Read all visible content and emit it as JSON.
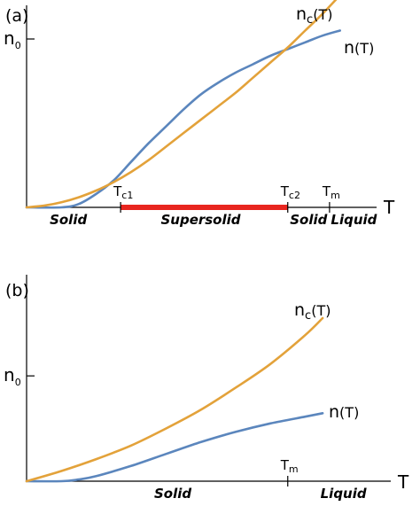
{
  "colors": {
    "n": "#5b86bd",
    "nc": "#e3a23a",
    "supersolid": "#e8251f",
    "axis": "#000000"
  },
  "chart_data": [
    {
      "type": "line",
      "panel_label": "(a)",
      "xlabel": "T",
      "ylabel": "n",
      "ylabel_sub": "0",
      "ylim": [
        0,
        1.2
      ],
      "xlim": [
        0,
        1.0
      ],
      "series": [
        {
          "name": "n(T)",
          "label_main": "n",
          "label_sub": "",
          "label_arg": "(T)",
          "color": "#5b86bd",
          "x": [
            0.0,
            0.1,
            0.15,
            0.2,
            0.25,
            0.3,
            0.35,
            0.4,
            0.45,
            0.5,
            0.55,
            0.6,
            0.65,
            0.7,
            0.75,
            0.8,
            0.85,
            0.9
          ],
          "y": [
            0.0,
            0.0,
            0.02,
            0.08,
            0.16,
            0.27,
            0.38,
            0.48,
            0.58,
            0.67,
            0.74,
            0.8,
            0.85,
            0.9,
            0.94,
            0.98,
            1.02,
            1.05
          ]
        },
        {
          "name": "nc(T)",
          "label_main": "n",
          "label_sub": "c",
          "label_arg": "(T)",
          "color": "#e3a23a",
          "x": [
            0.0,
            0.05,
            0.1,
            0.15,
            0.2,
            0.25,
            0.3,
            0.35,
            0.4,
            0.45,
            0.5,
            0.55,
            0.6,
            0.65,
            0.7,
            0.75,
            0.8,
            0.85,
            0.9
          ],
          "y": [
            0.0,
            0.01,
            0.03,
            0.06,
            0.1,
            0.15,
            0.21,
            0.28,
            0.36,
            0.44,
            0.52,
            0.6,
            0.68,
            0.77,
            0.86,
            0.95,
            1.05,
            1.15,
            1.26
          ]
        }
      ],
      "y_ticks": [
        {
          "value": 1.0,
          "label": "n0"
        }
      ],
      "x_ticks": [
        {
          "value": 0.27,
          "main": "T",
          "sub": "c1"
        },
        {
          "value": 0.75,
          "main": "T",
          "sub": "c2"
        },
        {
          "value": 0.87,
          "main": "T",
          "sub": "m"
        }
      ],
      "supersolid_range": [
        0.27,
        0.75
      ],
      "phases": [
        {
          "label": "Solid",
          "x": 0.12
        },
        {
          "label": "Supersolid",
          "x": 0.5
        },
        {
          "label": "Solid",
          "x": 0.81
        },
        {
          "label": "Liquid",
          "x": 0.94
        }
      ]
    },
    {
      "type": "line",
      "panel_label": "(b)",
      "xlabel": "T",
      "ylabel": "n",
      "ylabel_sub": "0",
      "ylim": [
        0,
        1.2
      ],
      "xlim": [
        0,
        1.0
      ],
      "series": [
        {
          "name": "n(T)",
          "label_main": "n",
          "label_sub": "",
          "label_arg": "(T)",
          "color": "#5b86bd",
          "x": [
            0.0,
            0.1,
            0.15,
            0.2,
            0.3,
            0.4,
            0.5,
            0.6,
            0.7,
            0.8,
            0.85
          ],
          "y": [
            0.0,
            0.0,
            0.01,
            0.03,
            0.09,
            0.16,
            0.23,
            0.29,
            0.34,
            0.38,
            0.4
          ]
        },
        {
          "name": "nc(T)",
          "label_main": "n",
          "label_sub": "c",
          "label_arg": "(T)",
          "color": "#e3a23a",
          "x": [
            0.0,
            0.1,
            0.2,
            0.3,
            0.4,
            0.5,
            0.6,
            0.7,
            0.8,
            0.85
          ],
          "y": [
            0.0,
            0.06,
            0.13,
            0.21,
            0.31,
            0.42,
            0.55,
            0.69,
            0.86,
            0.96
          ]
        }
      ],
      "y_ticks": [
        {
          "value": 0.62,
          "label": "n0"
        }
      ],
      "x_ticks": [
        {
          "value": 0.75,
          "main": "T",
          "sub": "m"
        }
      ],
      "phases": [
        {
          "label": "Solid",
          "x": 0.42
        },
        {
          "label": "Liquid",
          "x": 0.91
        }
      ]
    }
  ]
}
